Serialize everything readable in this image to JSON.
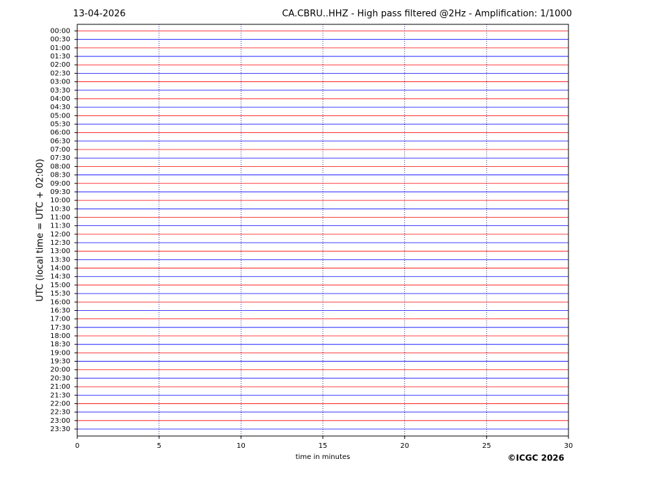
{
  "chart_data": {
    "type": "helicorder",
    "date": "13-04-2026",
    "title": "CA.CBRU..HHZ - High pass filtered @2Hz - Amplification: 1/1000",
    "ylabel": "UTC (local time = UTC + 02:00)",
    "xlabel": "time in minutes",
    "copyright": "©ICGC 2026",
    "categories": [
      "00:00",
      "00:30",
      "01:00",
      "01:30",
      "02:00",
      "02:30",
      "03:00",
      "03:30",
      "04:00",
      "04:30",
      "05:00",
      "05:30",
      "06:00",
      "06:30",
      "07:00",
      "07:30",
      "08:00",
      "08:30",
      "09:00",
      "09:30",
      "10:00",
      "10:30",
      "11:00",
      "11:30",
      "12:00",
      "12:30",
      "13:00",
      "13:30",
      "14:00",
      "14:30",
      "15:00",
      "15:30",
      "16:00",
      "16:30",
      "17:00",
      "17:30",
      "18:00",
      "18:30",
      "19:00",
      "19:30",
      "20:00",
      "20:30",
      "21:00",
      "21:30",
      "22:00",
      "22:30",
      "23:00",
      "23:30"
    ],
    "colors": [
      "#ff0000",
      "#0000ff"
    ],
    "xlim": [
      0,
      30
    ],
    "xticks": [
      0,
      5,
      10,
      15,
      20,
      25,
      30
    ],
    "grid": true
  }
}
